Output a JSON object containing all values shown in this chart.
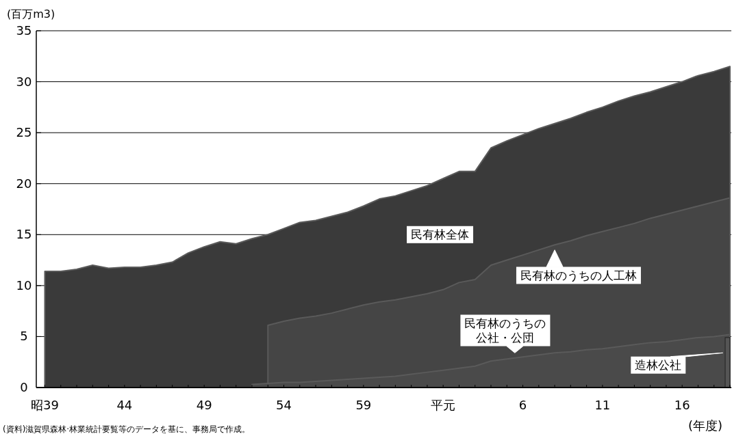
{
  "chart_data": {
    "type": "area",
    "ylabel": "(百万m3)",
    "xlabel": "(年度)",
    "categories": [
      "昭39",
      null,
      null,
      null,
      null,
      "44",
      null,
      null,
      null,
      null,
      "49",
      null,
      null,
      null,
      null,
      "54",
      null,
      null,
      null,
      null,
      "59",
      null,
      null,
      null,
      null,
      "平元",
      null,
      null,
      null,
      null,
      "6",
      null,
      null,
      null,
      null,
      "11",
      null,
      null,
      null,
      null,
      "16",
      null,
      null,
      null
    ],
    "series": [
      {
        "name": "民有林全体",
        "color": "#3a3a3a",
        "values": [
          11.4,
          11.4,
          11.6,
          12.0,
          11.7,
          11.8,
          11.8,
          12.0,
          12.3,
          13.2,
          13.8,
          14.3,
          14.1,
          14.6,
          15.0,
          15.6,
          16.2,
          16.4,
          16.8,
          17.2,
          17.8,
          18.5,
          18.8,
          19.3,
          19.8,
          20.5,
          21.2,
          21.2,
          23.5,
          24.2,
          24.8,
          25.4,
          25.9,
          26.4,
          27.0,
          27.5,
          28.1,
          28.6,
          29.0,
          29.5,
          30.0,
          30.6,
          31.0,
          31.5
        ]
      },
      {
        "name": "民有林のうちの人工林",
        "color": "#454545",
        "values": [
          null,
          null,
          null,
          null,
          null,
          null,
          null,
          null,
          null,
          null,
          null,
          null,
          null,
          null,
          6.1,
          6.5,
          6.8,
          7.0,
          7.3,
          7.7,
          8.1,
          8.4,
          8.6,
          8.9,
          9.2,
          9.6,
          10.3,
          10.6,
          12.0,
          12.5,
          13.0,
          13.5,
          14.0,
          14.4,
          14.9,
          15.3,
          15.7,
          16.1,
          16.6,
          17.0,
          17.4,
          17.8,
          18.2,
          18.6
        ]
      },
      {
        "name": "民有林のうちの公社・公団",
        "color": "#4a4a4a",
        "values": [
          null,
          null,
          null,
          null,
          null,
          null,
          null,
          null,
          null,
          null,
          null,
          null,
          null,
          0.3,
          0.4,
          0.5,
          0.5,
          0.6,
          0.7,
          0.8,
          0.9,
          1.0,
          1.1,
          1.3,
          1.5,
          1.7,
          1.9,
          2.1,
          2.6,
          2.8,
          3.0,
          3.2,
          3.4,
          3.5,
          3.7,
          3.8,
          4.0,
          4.2,
          4.4,
          4.5,
          4.7,
          4.9,
          5.0,
          5.2
        ]
      },
      {
        "name": "造林公社",
        "type": "bar",
        "color": "#555555",
        "values": [
          null,
          null,
          null,
          null,
          null,
          null,
          null,
          null,
          null,
          null,
          null,
          null,
          null,
          null,
          null,
          null,
          null,
          null,
          null,
          null,
          null,
          null,
          null,
          null,
          null,
          null,
          null,
          null,
          null,
          null,
          null,
          null,
          null,
          null,
          null,
          null,
          null,
          null,
          null,
          null,
          null,
          null,
          null,
          4.9
        ]
      }
    ],
    "ylim": [
      0,
      35
    ],
    "yticks": [
      0,
      5,
      10,
      15,
      20,
      25,
      30,
      35
    ],
    "grid": "y",
    "annotations": [
      "(資料)滋賀県森林·林業統計要覧等のデータを基に、事務局で作成。"
    ]
  }
}
